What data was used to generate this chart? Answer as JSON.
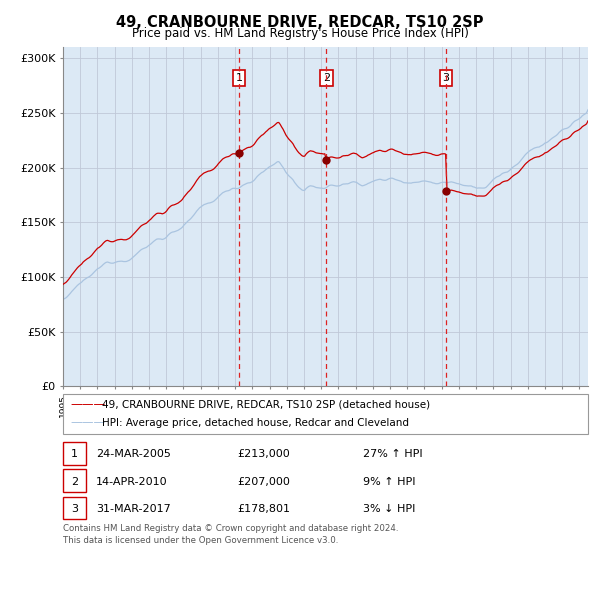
{
  "title": "49, CRANBOURNE DRIVE, REDCAR, TS10 2SP",
  "subtitle": "Price paid vs. HM Land Registry's House Price Index (HPI)",
  "hpi_label": "HPI: Average price, detached house, Redcar and Cleveland",
  "property_label": "49, CRANBOURNE DRIVE, REDCAR, TS10 2SP (detached house)",
  "transactions": [
    {
      "num": 1,
      "date": "24-MAR-2005",
      "price": 213000,
      "hpi_rel": "27% ↑ HPI",
      "date_val": 2005.23
    },
    {
      "num": 2,
      "date": "14-APR-2010",
      "price": 207000,
      "hpi_rel": "9% ↑ HPI",
      "date_val": 2010.29
    },
    {
      "num": 3,
      "date": "31-MAR-2017",
      "price": 178801,
      "hpi_rel": "3% ↓ HPI",
      "date_val": 2017.25
    }
  ],
  "ylim": [
    0,
    310000
  ],
  "yticks": [
    0,
    50000,
    100000,
    150000,
    200000,
    250000,
    300000
  ],
  "ytick_labels": [
    "£0",
    "£50K",
    "£100K",
    "£150K",
    "£200K",
    "£250K",
    "£300K"
  ],
  "xstart": 1995.0,
  "xend": 2025.5,
  "background_color": "#dce9f5",
  "hpi_color": "#aac4e0",
  "property_color": "#cc0000",
  "dashed_color": "#dd2222",
  "marker_color": "#880000",
  "grid_color": "#c0c8d8",
  "footnote1": "Contains HM Land Registry data © Crown copyright and database right 2024.",
  "footnote2": "This data is licensed under the Open Government Licence v3.0."
}
